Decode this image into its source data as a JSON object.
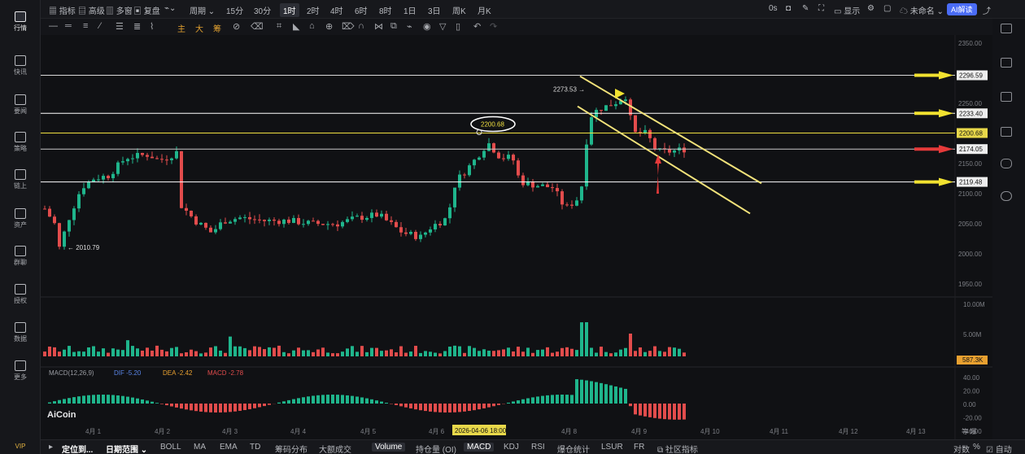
{
  "sidebar": {
    "items": [
      {
        "label": "行情",
        "icon": "market-icon",
        "active": true
      },
      {
        "label": "快讯",
        "icon": "news-flash-icon"
      },
      {
        "label": "要闻",
        "icon": "headlines-icon"
      },
      {
        "label": "策略",
        "icon": "strategy-bot-icon"
      },
      {
        "label": "链上",
        "icon": "chain-icon"
      },
      {
        "label": "资产",
        "icon": "assets-icon"
      },
      {
        "label": "群聊",
        "icon": "group-chat-icon"
      },
      {
        "label": "授权",
        "icon": "authorize-icon"
      },
      {
        "label": "数据",
        "icon": "data-icon"
      },
      {
        "label": "更多",
        "icon": "more-grid-icon"
      }
    ],
    "vip": "VIP"
  },
  "toolbar": {
    "left": [
      "指标",
      "高级",
      "多窗",
      "复盘"
    ],
    "period_label": "周期",
    "periods": [
      "15分",
      "30分",
      "1时",
      "2时",
      "4时",
      "6时",
      "8时",
      "1日",
      "3日",
      "周K",
      "月K"
    ],
    "active_period": "1时",
    "right": {
      "latency": "0s",
      "display": "显示",
      "account": "未命名",
      "ai": "AI解读"
    }
  },
  "drawtools": {
    "cn": [
      "主",
      "大",
      "筹"
    ]
  },
  "chart_data": [
    {
      "type": "candlestick",
      "price_axis": {
        "ticks": [
          2350,
          2300,
          2250,
          2200,
          2150,
          2100,
          2050,
          2000,
          1950
        ],
        "range": [
          1930,
          2360
        ]
      },
      "x_labels": [
        "4月 1",
        "4月 2",
        "4月 3",
        "4月 4",
        "4月 5",
        "4月 6",
        "4月 8",
        "4月 9",
        "4月 10",
        "4月 11",
        "4月 12",
        "4月 13"
      ],
      "horizontal_levels": [
        {
          "price": 2296.59,
          "label": "2296.59",
          "color": "#d8d8d8"
        },
        {
          "price": 2233.4,
          "label": "2233.40",
          "color": "#ffffff"
        },
        {
          "price": 2200.68,
          "label": "2200.68",
          "color": "#f0e040"
        },
        {
          "price": 2174.05,
          "label": "2174.05",
          "color": "#c8c8c8"
        },
        {
          "price": 2119.48,
          "label": "2119.48",
          "color": "#ffffff"
        }
      ],
      "annotations": {
        "high": "2273.53",
        "low": "2010.79",
        "circled": "2200.68"
      },
      "crosshair_date": "2026-04-06 18:00",
      "logo": "AiCoin"
    },
    {
      "type": "bar",
      "name": "Volume",
      "axis": {
        "ticks": [
          "10.00M",
          "5.00M"
        ]
      },
      "last_value": "587.3K"
    },
    {
      "type": "bar",
      "name": "MACD",
      "legend": {
        "title": "MACD(12,26,9)",
        "dif": "DIF -5.20",
        "dea": "DEA -2.42",
        "macd": "MACD -2.78"
      },
      "axis": {
        "ticks": [
          "40.00",
          "20.00",
          "0.00",
          "-20.00",
          "-40.00"
        ]
      }
    }
  ],
  "chart_footer": {
    "ratio": "对数",
    "pct": "%",
    "auto": "自动",
    "corner": "等 爆"
  },
  "bottom": {
    "left": [
      "定位到...",
      "日期范围"
    ],
    "indicators": [
      "BOLL",
      "MA",
      "EMA",
      "TD",
      "筹码分布",
      "大额成交",
      "Volume",
      "持仓量 (OI)",
      "MACD",
      "KDJ",
      "RSI",
      "爆仓统计",
      "LSUR",
      "FR",
      "社区指标"
    ],
    "active": [
      "Volume",
      "MACD"
    ]
  }
}
